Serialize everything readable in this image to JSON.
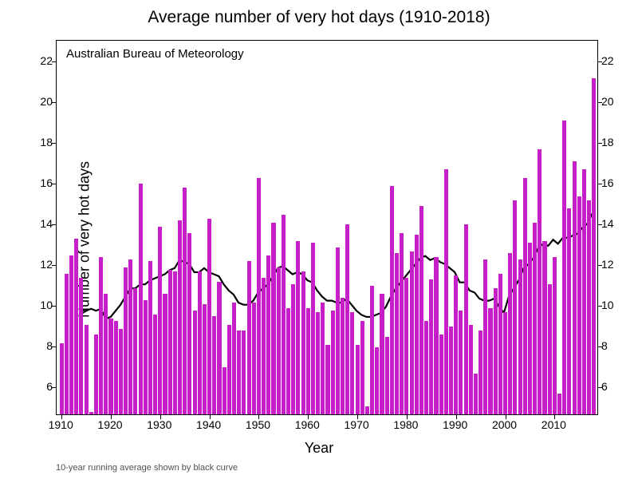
{
  "chart": {
    "type": "bar+line",
    "title": "Average number of very hot days (1910-2018)",
    "subtitle_inside": "Australian Bureau of Meteorology",
    "xlabel": "Year",
    "ylabel": "Number of very hot days",
    "footnote": "10-year running average shown by black curve",
    "title_fontsize": 21,
    "label_fontsize": 18,
    "tick_fontsize": 14,
    "subtitle_fontsize": 15,
    "footnote_fontsize": 11,
    "background_color": "#ffffff",
    "bar_color": "#c71fc7",
    "line_color": "#000000",
    "line_width": 2.2,
    "border_color": "#000000",
    "xlim": [
      1909,
      2019
    ],
    "ylim": [
      4.6,
      23.0
    ],
    "yticks": [
      6,
      8,
      10,
      12,
      14,
      16,
      18,
      20,
      22
    ],
    "xticks": [
      1910,
      1920,
      1930,
      1940,
      1950,
      1960,
      1970,
      1980,
      1990,
      2000,
      2010
    ],
    "bar_width_years": 0.82,
    "years_start": 1910,
    "bar_values": [
      8.1,
      11.5,
      12.4,
      13.2,
      11.3,
      9.0,
      4.7,
      8.5,
      12.3,
      10.5,
      9.3,
      9.2,
      8.8,
      11.8,
      12.2,
      10.8,
      15.9,
      10.2,
      12.1,
      9.5,
      13.8,
      10.5,
      11.7,
      11.6,
      14.1,
      15.7,
      13.5,
      9.7,
      11.6,
      10.0,
      14.2,
      9.4,
      11.1,
      6.9,
      9.0,
      10.1,
      8.7,
      8.7,
      12.1,
      10.1,
      16.2,
      11.3,
      12.4,
      14.0,
      11.8,
      14.4,
      9.8,
      11.0,
      13.1,
      11.6,
      9.8,
      13.0,
      9.6,
      10.1,
      8.0,
      9.7,
      12.8,
      10.3,
      13.9,
      9.6,
      8.0,
      9.2,
      5.0,
      10.9,
      7.9,
      10.5,
      8.4,
      15.8,
      12.5,
      13.5,
      11.3,
      12.6,
      13.4,
      14.8,
      9.2,
      11.2,
      12.3,
      8.5,
      16.6,
      8.9,
      11.4,
      9.7,
      13.9,
      9.0,
      6.6,
      8.7,
      12.2,
      9.8,
      10.8,
      11.5,
      9.6,
      12.5,
      15.1,
      12.2,
      16.2,
      13.0,
      14.0,
      17.6,
      13.1,
      11.0,
      12.3,
      5.6,
      19.0,
      14.7,
      17.0,
      15.3,
      16.6,
      15.1,
      21.1
    ],
    "trend_values": [
      null,
      null,
      null,
      null,
      9.7,
      9.7,
      9.8,
      9.7,
      9.8,
      9.3,
      9.4,
      9.7,
      10.0,
      10.4,
      10.8,
      10.8,
      11.0,
      11.0,
      11.2,
      11.3,
      11.4,
      11.5,
      11.7,
      11.8,
      12.2,
      12.1,
      12.0,
      11.6,
      11.6,
      11.8,
      11.6,
      11.5,
      11.4,
      11.0,
      10.7,
      10.5,
      10.1,
      10.0,
      10.0,
      10.2,
      10.6,
      10.8,
      11.0,
      11.4,
      11.8,
      11.9,
      11.7,
      11.5,
      11.6,
      11.5,
      11.2,
      11.1,
      10.7,
      10.4,
      10.2,
      10.2,
      10.1,
      10.1,
      10.3,
      10.0,
      9.7,
      9.5,
      9.4,
      9.4,
      9.5,
      9.6,
      9.9,
      10.4,
      10.8,
      11.1,
      11.4,
      11.7,
      12.0,
      12.3,
      12.4,
      12.2,
      12.3,
      12.1,
      12.0,
      11.8,
      11.6,
      11.1,
      11.1,
      10.7,
      10.6,
      10.3,
      10.2,
      10.2,
      10.3,
      9.9,
      9.6,
      10.4,
      10.8,
      11.2,
      11.8,
      12.0,
      12.3,
      12.8,
      13.0,
      12.9,
      13.2,
      13.0,
      13.3,
      13.3,
      13.4,
      13.5,
      13.8,
      14.0,
      14.5
    ]
  }
}
